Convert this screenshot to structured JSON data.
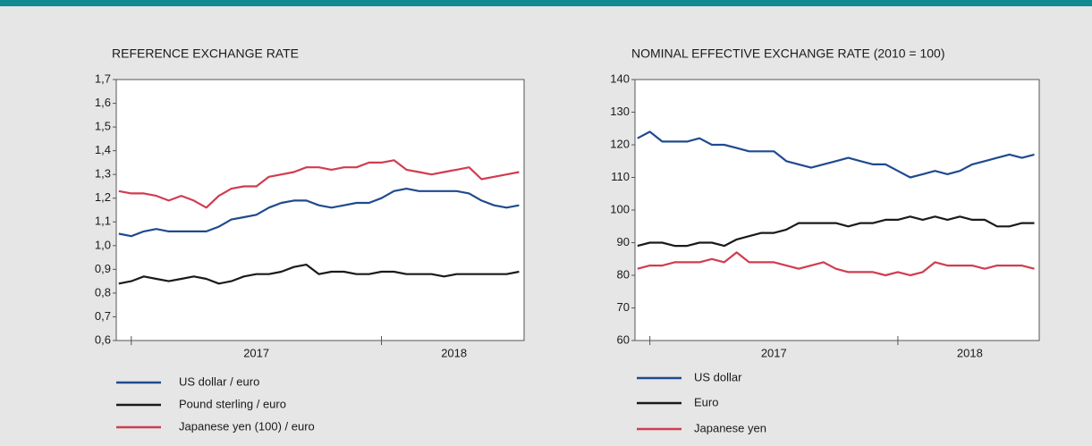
{
  "chart_data": [
    {
      "type": "line",
      "title": "REFERENCE EXCHANGE RATE",
      "x": [
        2016.95,
        2017.0,
        2017.05,
        2017.1,
        2017.15,
        2017.2,
        2017.25,
        2017.3,
        2017.35,
        2017.4,
        2017.45,
        2017.5,
        2017.55,
        2017.6,
        2017.65,
        2017.7,
        2017.75,
        2017.8,
        2017.85,
        2017.9,
        2017.95,
        2018.0,
        2018.05,
        2018.1,
        2018.15,
        2018.2,
        2018.25,
        2018.3,
        2018.35,
        2018.4,
        2018.45,
        2018.5,
        2018.55
      ],
      "xlim": [
        2016.94,
        2018.57
      ],
      "xticks": [
        {
          "value": 2017.5,
          "label": "2017"
        },
        {
          "value": 2018.29,
          "label": "2018"
        }
      ],
      "year_ticks": [
        2017,
        2018
      ],
      "ylim": [
        0.6,
        1.7
      ],
      "yticks": [
        {
          "value": 0.6,
          "label": "0,6"
        },
        {
          "value": 0.7,
          "label": "0,7"
        },
        {
          "value": 0.8,
          "label": "0,8"
        },
        {
          "value": 0.9,
          "label": "0,9"
        },
        {
          "value": 1.0,
          "label": "1,0"
        },
        {
          "value": 1.1,
          "label": "1,1"
        },
        {
          "value": 1.2,
          "label": "1,2"
        },
        {
          "value": 1.3,
          "label": "1,3"
        },
        {
          "value": 1.4,
          "label": "1,4"
        },
        {
          "value": 1.5,
          "label": "1,5"
        },
        {
          "value": 1.6,
          "label": "1,6"
        },
        {
          "value": 1.7,
          "label": "1,7"
        }
      ],
      "series": [
        {
          "name": "US dollar / euro",
          "color": "#1f4a8f",
          "values": [
            1.05,
            1.04,
            1.06,
            1.07,
            1.06,
            1.06,
            1.06,
            1.06,
            1.08,
            1.11,
            1.12,
            1.13,
            1.16,
            1.18,
            1.19,
            1.19,
            1.17,
            1.16,
            1.17,
            1.18,
            1.18,
            1.2,
            1.23,
            1.24,
            1.23,
            1.23,
            1.23,
            1.23,
            1.22,
            1.19,
            1.17,
            1.16,
            1.17
          ]
        },
        {
          "name": "Pound sterling / euro",
          "color": "#1a1a1a",
          "values": [
            0.84,
            0.85,
            0.87,
            0.86,
            0.85,
            0.86,
            0.87,
            0.86,
            0.84,
            0.85,
            0.87,
            0.88,
            0.88,
            0.89,
            0.91,
            0.92,
            0.88,
            0.89,
            0.89,
            0.88,
            0.88,
            0.89,
            0.89,
            0.88,
            0.88,
            0.88,
            0.87,
            0.88,
            0.88,
            0.88,
            0.88,
            0.88,
            0.89
          ]
        },
        {
          "name": "Japanese yen (100) / euro",
          "color": "#d13c4f",
          "values": [
            1.23,
            1.22,
            1.22,
            1.21,
            1.19,
            1.21,
            1.19,
            1.16,
            1.21,
            1.24,
            1.25,
            1.25,
            1.29,
            1.3,
            1.31,
            1.33,
            1.33,
            1.32,
            1.33,
            1.33,
            1.35,
            1.35,
            1.36,
            1.32,
            1.31,
            1.3,
            1.31,
            1.32,
            1.33,
            1.28,
            1.29,
            1.3,
            1.31
          ]
        }
      ]
    },
    {
      "type": "line",
      "title": "NOMINAL EFFECTIVE EXCHANGE RATE (2010 = 100)",
      "x": [
        2016.95,
        2017.0,
        2017.05,
        2017.1,
        2017.15,
        2017.2,
        2017.25,
        2017.3,
        2017.35,
        2017.4,
        2017.45,
        2017.5,
        2017.55,
        2017.6,
        2017.65,
        2017.7,
        2017.75,
        2017.8,
        2017.85,
        2017.9,
        2017.95,
        2018.0,
        2018.05,
        2018.1,
        2018.15,
        2018.2,
        2018.25,
        2018.3,
        2018.35,
        2018.4,
        2018.45,
        2018.5,
        2018.55
      ],
      "xlim": [
        2016.94,
        2018.57
      ],
      "xticks": [
        {
          "value": 2017.5,
          "label": "2017"
        },
        {
          "value": 2018.29,
          "label": "2018"
        }
      ],
      "year_ticks": [
        2017,
        2018
      ],
      "ylim": [
        60,
        140
      ],
      "yticks": [
        60,
        70,
        80,
        90,
        100,
        110,
        120,
        130,
        140
      ],
      "series": [
        {
          "name": "US dollar",
          "color": "#1f4a8f",
          "values": [
            122,
            124,
            121,
            121,
            121,
            122,
            120,
            120,
            119,
            118,
            118,
            118,
            115,
            114,
            113,
            114,
            115,
            116,
            115,
            114,
            114,
            112,
            110,
            111,
            112,
            111,
            112,
            114,
            115,
            116,
            117,
            116,
            117
          ]
        },
        {
          "name": "Euro",
          "color": "#1a1a1a",
          "values": [
            89,
            90,
            90,
            89,
            89,
            90,
            90,
            89,
            91,
            92,
            93,
            93,
            94,
            96,
            96,
            96,
            96,
            95,
            96,
            96,
            97,
            97,
            98,
            97,
            98,
            97,
            98,
            97,
            97,
            95,
            95,
            96,
            96
          ]
        },
        {
          "name": "Japanese yen",
          "color": "#d13c4f",
          "values": [
            82,
            83,
            83,
            84,
            84,
            84,
            85,
            84,
            87,
            84,
            84,
            84,
            83,
            82,
            83,
            84,
            82,
            81,
            81,
            81,
            80,
            81,
            80,
            81,
            84,
            83,
            83,
            83,
            82,
            83,
            83,
            83,
            82
          ]
        }
      ]
    }
  ]
}
